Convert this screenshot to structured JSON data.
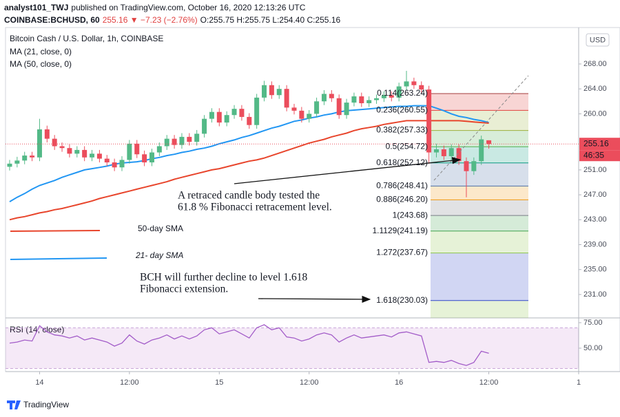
{
  "header": {
    "author": "analyst101_TWJ",
    "published": "published on TradingView.com, October 16, 2020 12:13:26 UTC",
    "symbol": "COINBASE:BCHUSD, 60",
    "change": "255.16 ▼ −7.23 (−2.76%)",
    "ohlc": "O:255.75 H:255.75 L:254.40 C:255.16"
  },
  "footer": {
    "brand": "TradingView"
  },
  "chart_data": {
    "type": "candlestick",
    "title": "Bitcoin Cash / U.S. Dollar, 1h, COINBASE",
    "currency": "USD",
    "up_color": "#53b987",
    "down_color": "#eb4d5c",
    "open": [
      251.5,
      252.0,
      252.5,
      253.3,
      253.0,
      257.5,
      256.0,
      254.8,
      254.5,
      253.6,
      254.2,
      253.0,
      253.6,
      252.8,
      252.2,
      251.4,
      252.6,
      255.2,
      253.5,
      252.2,
      253.8,
      254.8,
      256.0,
      255.0,
      256.3,
      255.5,
      256.8,
      259.2,
      260.3,
      258.6,
      259.8,
      260.8,
      259.5,
      258.2,
      262.6,
      264.6,
      263.0,
      264.0,
      261.0,
      260.5,
      259.2,
      260.0,
      262.0,
      263.2,
      262.5,
      259.8,
      261.8,
      262.8,
      261.7,
      262.2,
      262.5,
      263.0,
      262.6,
      264.4,
      265.2,
      264.6,
      263.9,
      253.8,
      254.3,
      253.2,
      254.5,
      252.4,
      250.8,
      252.4,
      255.75
    ],
    "high": [
      252.6,
      253.1,
      253.9,
      253.9,
      259.2,
      258.1,
      256.6,
      255.4,
      255.1,
      254.8,
      254.8,
      254.2,
      254.2,
      253.4,
      252.8,
      253.2,
      255.8,
      255.8,
      254.1,
      254.4,
      255.4,
      256.6,
      256.6,
      256.9,
      256.9,
      257.4,
      259.8,
      260.9,
      260.9,
      260.4,
      261.4,
      261.4,
      260.1,
      263.2,
      265.3,
      265.2,
      264.6,
      264.6,
      261.6,
      261.1,
      260.6,
      262.6,
      263.8,
      263.8,
      263.1,
      262.4,
      263.4,
      263.4,
      262.8,
      263.1,
      263.6,
      263.6,
      265.0,
      266.9,
      265.8,
      265.2,
      264.5,
      255.2,
      254.9,
      255.1,
      255.1,
      253.0,
      253.0,
      256.5,
      255.75
    ],
    "low": [
      250.9,
      251.4,
      251.9,
      252.4,
      252.4,
      255.4,
      254.2,
      253.9,
      253.0,
      253.0,
      252.4,
      252.4,
      252.2,
      251.6,
      250.8,
      250.8,
      252.0,
      252.9,
      251.6,
      251.6,
      253.2,
      254.2,
      254.4,
      254.4,
      254.9,
      254.9,
      256.2,
      258.6,
      258.0,
      258.0,
      259.2,
      258.9,
      257.6,
      257.6,
      262.0,
      262.4,
      262.4,
      260.4,
      259.9,
      258.6,
      258.6,
      259.4,
      261.4,
      261.9,
      259.2,
      259.2,
      261.2,
      261.1,
      261.1,
      261.6,
      261.9,
      262.0,
      262.0,
      263.8,
      264.0,
      263.3,
      252.0,
      253.0,
      252.6,
      252.6,
      251.8,
      246.6,
      250.2,
      251.8,
      254.4
    ],
    "close": [
      252.0,
      252.5,
      253.3,
      253.0,
      257.5,
      256.0,
      254.8,
      254.5,
      253.6,
      254.2,
      253.0,
      253.6,
      252.8,
      252.2,
      251.4,
      252.6,
      255.2,
      253.5,
      252.2,
      253.8,
      254.8,
      256.0,
      255.0,
      256.3,
      255.5,
      256.8,
      259.2,
      260.3,
      258.6,
      259.8,
      260.8,
      259.5,
      258.2,
      262.6,
      264.6,
      263.0,
      264.0,
      261.0,
      260.5,
      259.2,
      260.0,
      262.0,
      263.2,
      262.5,
      259.8,
      261.8,
      262.8,
      261.7,
      262.2,
      262.5,
      263.0,
      262.6,
      264.4,
      265.2,
      264.6,
      263.9,
      253.8,
      254.3,
      253.2,
      254.5,
      252.4,
      250.8,
      252.4,
      255.9,
      255.16
    ],
    "series": [
      {
        "name": "MA (21, close, 0)",
        "color": "#2196f3",
        "values": [
          245.9,
          246.6,
          247.2,
          247.9,
          248.5,
          248.9,
          249.3,
          249.8,
          250.2,
          250.6,
          251.0,
          251.2,
          251.4,
          251.6,
          251.9,
          252.1,
          252.2,
          252.3,
          252.5,
          252.8,
          253.0,
          253.3,
          253.5,
          253.8,
          254.0,
          254.3,
          254.5,
          254.8,
          255.2,
          255.5,
          255.8,
          256.2,
          256.5,
          256.9,
          257.3,
          257.7,
          258.0,
          258.4,
          258.8,
          259.0,
          259.3,
          259.5,
          259.8,
          260.0,
          260.3,
          260.5,
          260.6,
          260.7,
          260.8,
          260.9,
          261.0,
          261.1,
          261.2,
          261.2,
          261.3,
          261.3,
          261.3,
          260.9,
          260.5,
          260.0,
          259.6,
          259.4,
          259.1,
          258.9,
          258.6
        ]
      },
      {
        "name": "MA (50, close, 0)",
        "color": "#e8452c",
        "values": [
          243.0,
          243.3,
          243.5,
          243.8,
          244.1,
          244.3,
          244.6,
          244.8,
          245.1,
          245.4,
          245.7,
          246.0,
          246.4,
          246.7,
          247.0,
          247.3,
          247.6,
          247.9,
          248.2,
          248.5,
          248.8,
          249.1,
          249.5,
          249.8,
          250.1,
          250.4,
          250.7,
          251.0,
          251.2,
          251.5,
          251.8,
          252.1,
          252.4,
          252.6,
          252.9,
          253.3,
          253.7,
          254.1,
          254.5,
          254.9,
          255.3,
          255.6,
          255.9,
          256.3,
          256.6,
          256.9,
          257.3,
          257.6,
          257.8,
          258.0,
          258.3,
          258.5,
          258.7,
          258.9,
          258.9,
          258.9,
          258.9,
          258.9,
          258.9,
          258.9,
          258.9,
          258.8,
          258.7,
          258.6,
          258.5
        ]
      }
    ],
    "xlim": [
      -0.55,
      76
    ],
    "xticks": [
      {
        "value": 4,
        "label": "14"
      },
      {
        "value": 16,
        "label": "12:00"
      },
      {
        "value": 28,
        "label": "15"
      },
      {
        "value": 40,
        "label": "12:00"
      },
      {
        "value": 52,
        "label": "16"
      },
      {
        "value": 64,
        "label": "12:00"
      },
      {
        "value": 76,
        "label": "1"
      }
    ],
    "ylim": [
      227.24,
      273.85
    ],
    "yticks": [
      {
        "value": 268,
        "label": "268.00"
      },
      {
        "value": 264,
        "label": "264.00"
      },
      {
        "value": 260,
        "label": "260.00"
      },
      {
        "value": 251,
        "label": "251.00"
      },
      {
        "value": 247,
        "label": "247.00"
      },
      {
        "value": 243,
        "label": "243.00"
      },
      {
        "value": 239,
        "label": "239.00"
      },
      {
        "value": 235,
        "label": "235.00"
      },
      {
        "value": 231,
        "label": "231.00"
      }
    ],
    "last_price": {
      "value": 255.16,
      "label": "255.16",
      "color": "#eb4d5c"
    },
    "countdown": "46:35",
    "fibonacci": {
      "levels": [
        {
          "label": "0.114(263.24)",
          "value": 263.24,
          "color": "#a33b3b"
        },
        {
          "label": "0.236(260.55)",
          "value": 260.55,
          "color": "#e0413c"
        },
        {
          "label": "0.382(257.33)",
          "value": 257.33,
          "color": "#9bb13a"
        },
        {
          "label": "0.5(254.72)",
          "value": 254.72,
          "color": "#4caf50"
        },
        {
          "label": "0.618(252.12)",
          "value": 252.12,
          "color": "#089981"
        },
        {
          "label": "0.786(248.41)",
          "value": 248.41,
          "color": "#4a6fa5"
        },
        {
          "label": "0.886(246.20)",
          "value": 246.2,
          "color": "#f0960c"
        },
        {
          "label": "1(243.68)",
          "value": 243.68,
          "color": "#787b86"
        },
        {
          "label": "1.1129(241.19)",
          "value": 241.19,
          "color": "#3fa34d"
        },
        {
          "label": "1.272(237.67)",
          "value": 237.67,
          "color": "#8bc34a"
        },
        {
          "label": "1.618(230.03)",
          "value": 230.03,
          "color": "#2f45c8"
        }
      ]
    },
    "annotations": [
      {
        "lines": [
          "A retraced candle body tested the",
          "61.8 % Fibonacci retracement level."
        ]
      },
      {
        "lines": [
          "50-day SMA"
        ],
        "color": "#e8452c"
      },
      {
        "lines": [
          "21- day SMA"
        ],
        "color": "#2196f3"
      },
      {
        "lines": [
          "BCH will further decline to level 1.618",
          "Fibonacci extension."
        ]
      }
    ],
    "rsi": {
      "name": "RSI (14, close)",
      "color": "#a25bc8",
      "band": [
        30,
        70
      ],
      "values": [
        55,
        56,
        58,
        57,
        72,
        66,
        63,
        62,
        60,
        62,
        58,
        60,
        58,
        56,
        52,
        55,
        63,
        57,
        54,
        58,
        60,
        63,
        59,
        62,
        59,
        62,
        68,
        70,
        64,
        66,
        68,
        64,
        60,
        70,
        73,
        68,
        70,
        61,
        60,
        57,
        59,
        63,
        65,
        63,
        56,
        60,
        63,
        60,
        61,
        62,
        63,
        61,
        65,
        66,
        64,
        62,
        36,
        37,
        36,
        38,
        35,
        33,
        36,
        47,
        45
      ],
      "ylim": [
        27,
        79.7
      ],
      "yticks": [
        {
          "value": 75,
          "label": "75.00"
        },
        {
          "value": 50,
          "label": "50.00"
        }
      ]
    }
  }
}
